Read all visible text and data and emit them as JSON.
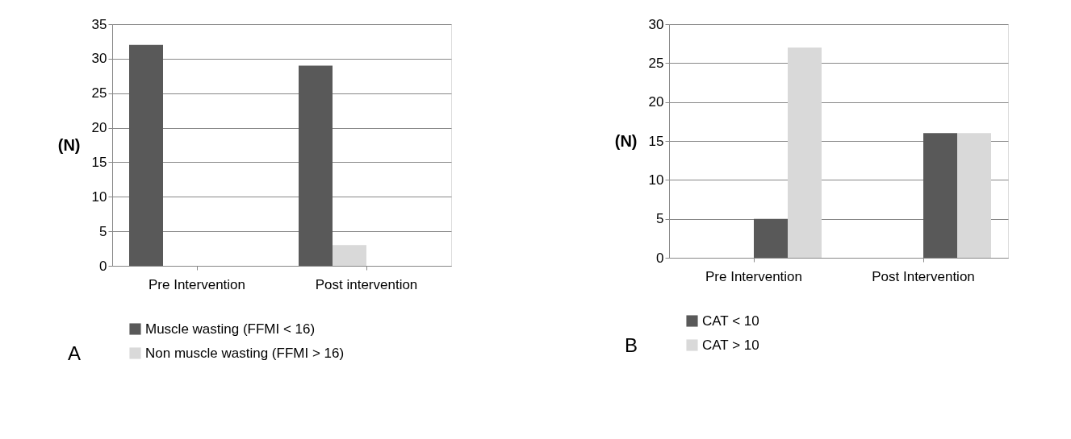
{
  "chart_data": [
    {
      "type": "bar",
      "ylabel": "(N)",
      "categories": [
        "Pre Intervention",
        "Post intervention"
      ],
      "series": [
        {
          "name": "Muscle wasting (FFMI < 16)",
          "color": "#595959",
          "values": [
            32,
            29
          ]
        },
        {
          "name": "Non muscle wasting (FFMI > 16)",
          "color": "#d9d9d9",
          "values": [
            0,
            3
          ]
        }
      ],
      "ylim": [
        0,
        35
      ],
      "yticks": [
        0,
        5,
        10,
        15,
        20,
        25,
        30,
        35
      ],
      "grid": "y",
      "legend": "bottom",
      "annotations": [
        "A"
      ]
    },
    {
      "type": "bar",
      "ylabel": "(N)",
      "categories": [
        "Pre Intervention",
        "Post Intervention"
      ],
      "series": [
        {
          "name": "CAT < 10",
          "color": "#595959",
          "values": [
            5,
            16
          ]
        },
        {
          "name": "CAT > 10",
          "color": "#d9d9d9",
          "values": [
            27,
            16
          ]
        }
      ],
      "ylim": [
        0,
        30
      ],
      "yticks": [
        0,
        5,
        10,
        15,
        20,
        25,
        30
      ],
      "grid": "y",
      "legend": "bottom",
      "annotations": [
        "B"
      ]
    }
  ]
}
